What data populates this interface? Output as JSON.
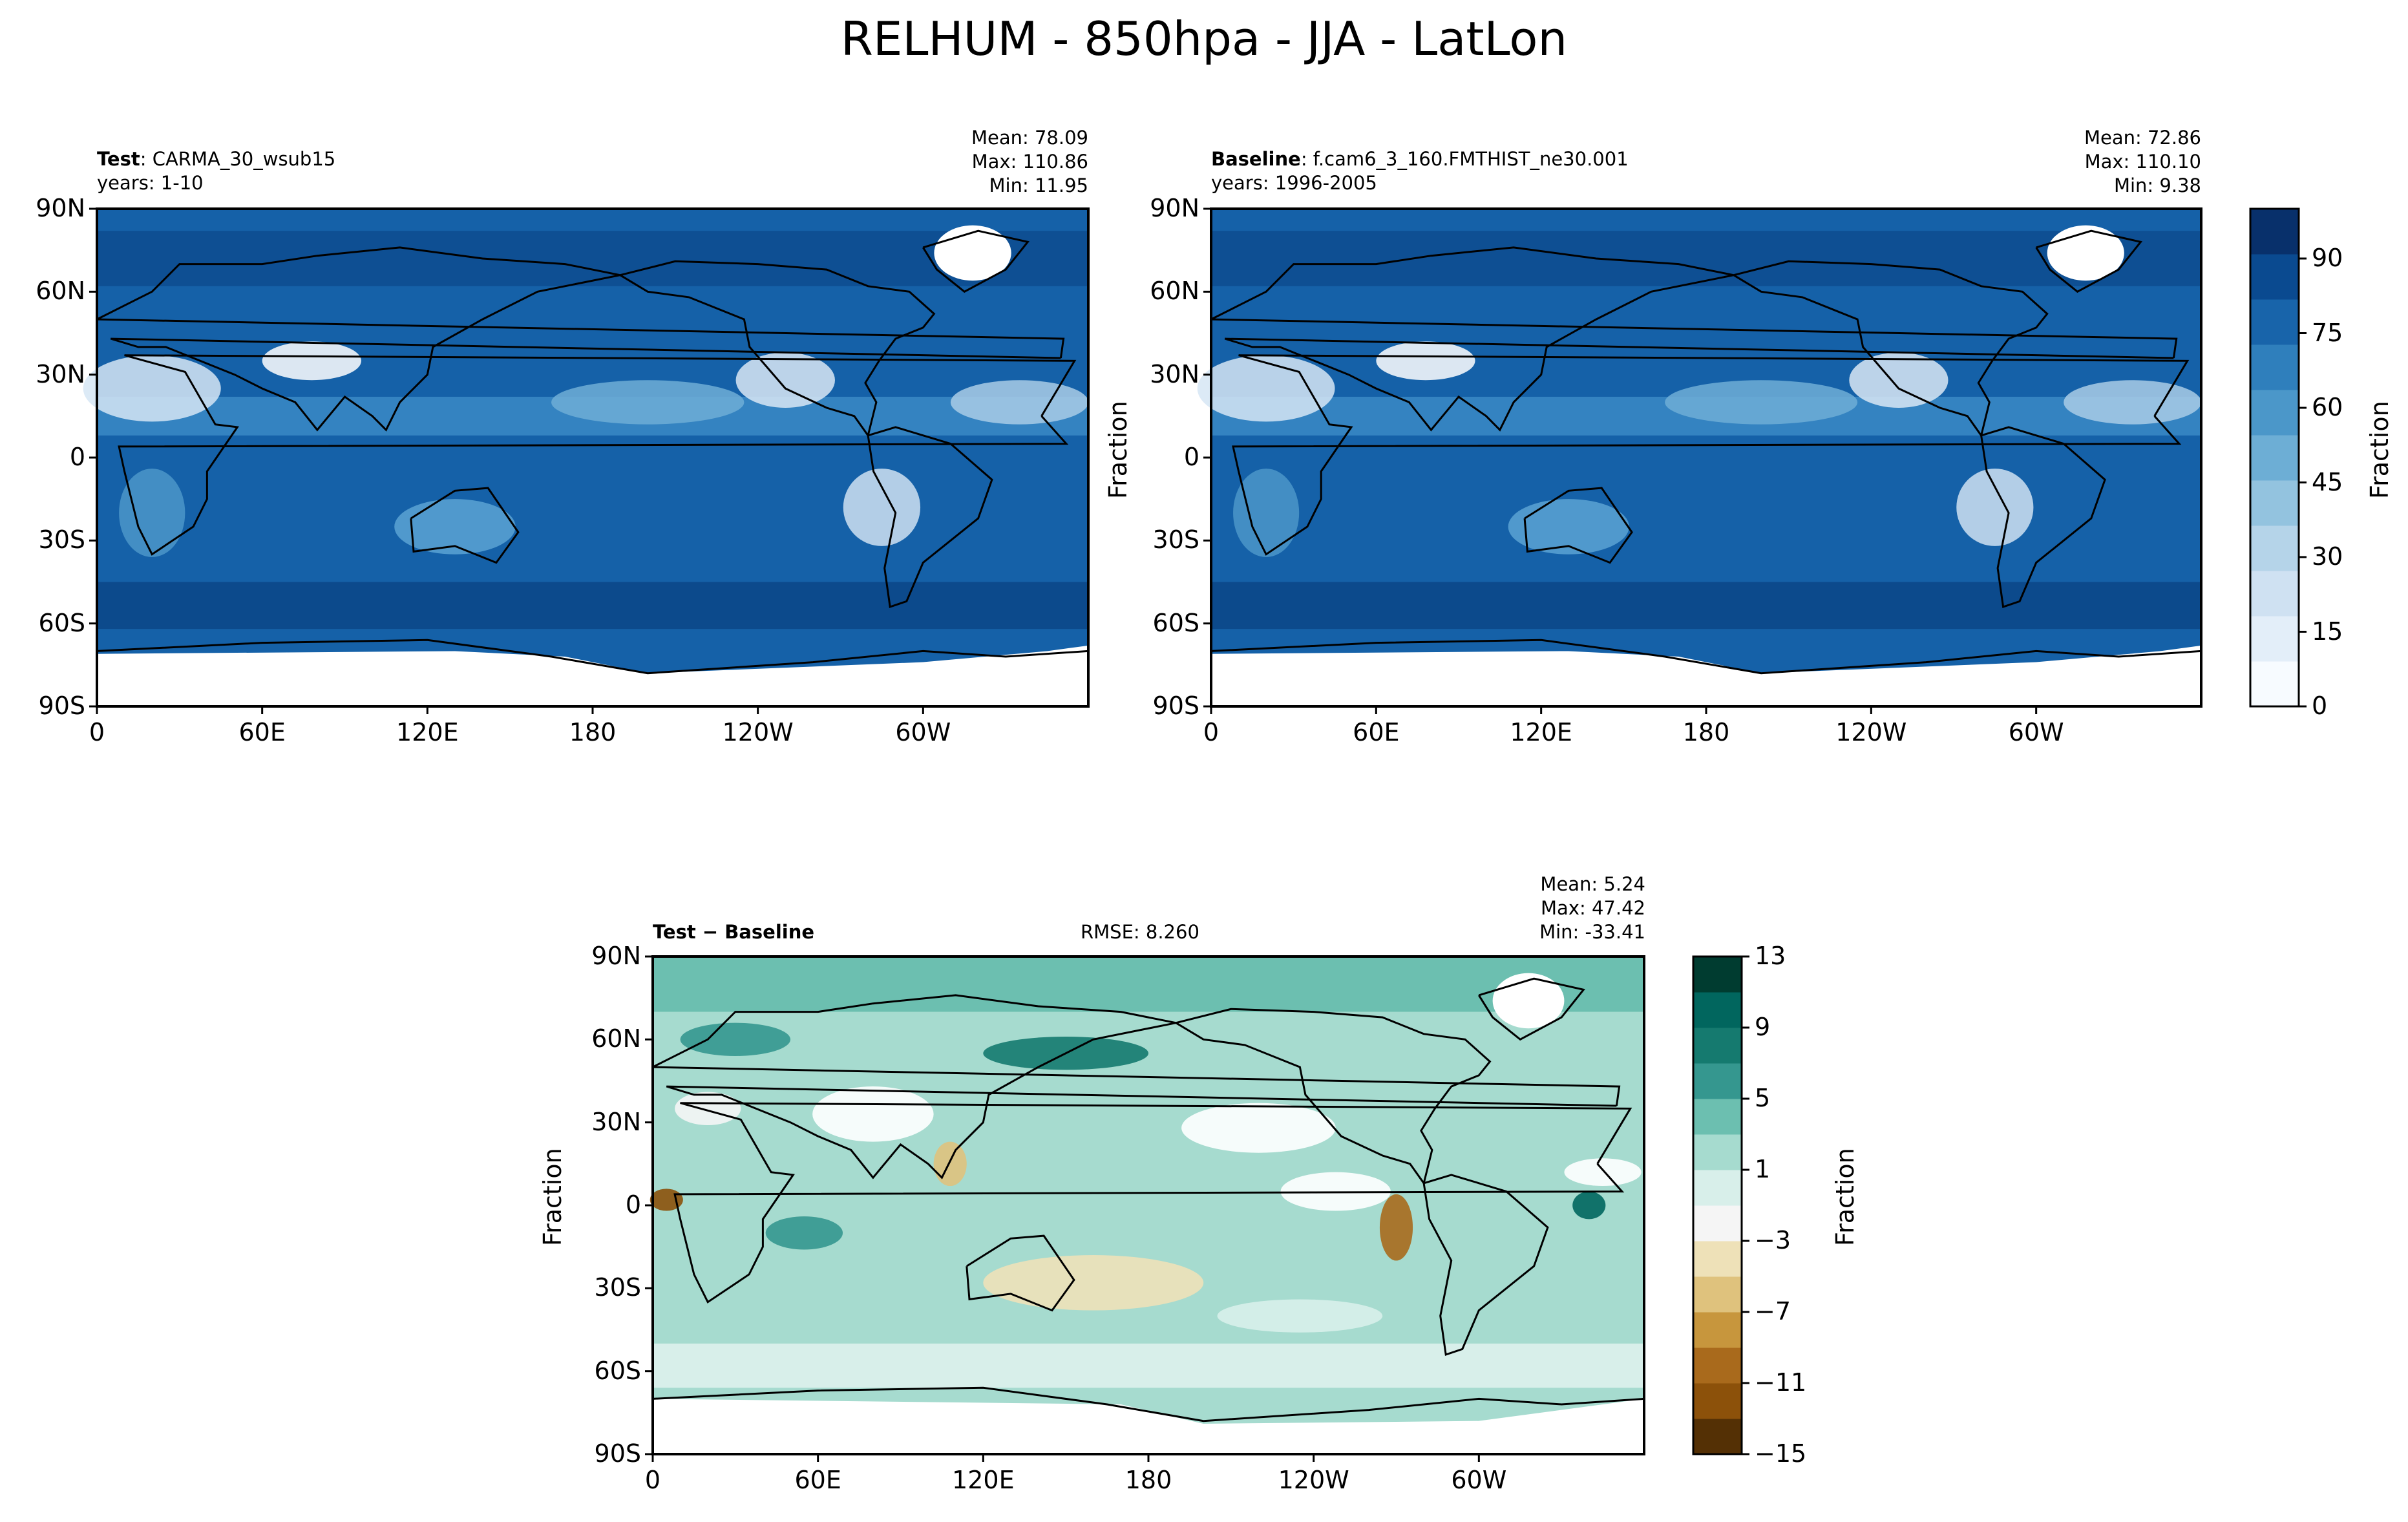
{
  "title": "RELHUM - 850hpa - JJA - LatLon",
  "panels": {
    "test": {
      "label_bold": "Test",
      "label_rest": ": CARMA_30_wsub15",
      "years": "years: 1-10",
      "mean": "Mean: 78.09",
      "max": "Max: 110.86",
      "min": "Min: 11.95"
    },
    "baseline": {
      "label_bold": "Baseline",
      "label_rest": ": f.cam6_3_160.FMTHIST_ne30.001",
      "years": "years: 1996-2005",
      "mean": "Mean: 72.86",
      "max": "Max: 110.10",
      "min": "Min:  9.38",
      "ylabel": "Fraction"
    },
    "diff": {
      "label": "Test − Baseline",
      "rmse": "RMSE: 8.260",
      "mean": "Mean:  5.24",
      "max": "Max: 47.42",
      "min": "Min: -33.41",
      "ylabel": "Fraction"
    }
  },
  "axes": {
    "lat_ticks": [
      "90N",
      "60N",
      "30N",
      "0",
      "30S",
      "60S",
      "90S"
    ],
    "lon_ticks": [
      "0",
      "60E",
      "120E",
      "180",
      "120W",
      "60W"
    ]
  },
  "colorbar_main": {
    "label": "Fraction",
    "ticks": [
      "90",
      "75",
      "60",
      "45",
      "30",
      "15",
      "0"
    ],
    "colors": [
      "#f7fbff",
      "#e3eef9",
      "#cfe1f2",
      "#b5d4e9",
      "#93c3df",
      "#6daed5",
      "#4b97c9",
      "#2f7fbc",
      "#1864aa",
      "#0a4a90",
      "#08306b"
    ]
  },
  "colorbar_diff": {
    "label": "Fraction",
    "ticks": [
      "13",
      "9",
      "5",
      "1",
      "−3",
      "−7",
      "−11",
      "−15"
    ],
    "colors": [
      "#543005",
      "#8c510a",
      "#a96a1c",
      "#c7963d",
      "#dfc27d",
      "#eee1b8",
      "#f5f5f5",
      "#d8efea",
      "#a6dbcf",
      "#6cbfb0",
      "#35978f",
      "#157a6f",
      "#01665e",
      "#003c30"
    ]
  },
  "chart_data": [
    {
      "type": "heatmap",
      "title": "Test: CARMA_30_wsub15",
      "variable": "RELHUM 850hpa JJA",
      "x_range": [
        0,
        360
      ],
      "y_range": [
        -90,
        90
      ],
      "stats": {
        "mean": 78.09,
        "max": 110.86,
        "min": 11.95
      },
      "colorbar_range": [
        0,
        100
      ]
    },
    {
      "type": "heatmap",
      "title": "Baseline: f.cam6_3_160.FMTHIST_ne30.001",
      "variable": "RELHUM 850hpa JJA",
      "x_range": [
        0,
        360
      ],
      "y_range": [
        -90,
        90
      ],
      "stats": {
        "mean": 72.86,
        "max": 110.1,
        "min": 9.38
      },
      "colorbar_range": [
        0,
        100
      ]
    },
    {
      "type": "heatmap",
      "title": "Test − Baseline",
      "x_range": [
        0,
        360
      ],
      "y_range": [
        -90,
        90
      ],
      "stats": {
        "mean": 5.24,
        "max": 47.42,
        "min": -33.41,
        "rmse": 8.26
      },
      "colorbar_range": [
        -15,
        13
      ]
    }
  ]
}
